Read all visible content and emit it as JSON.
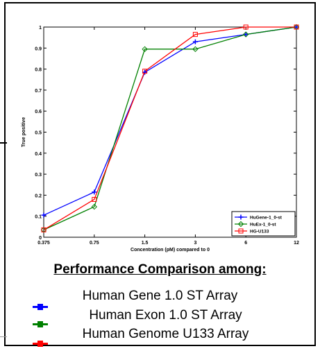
{
  "chart_data": {
    "type": "line",
    "x_categories": [
      "0.375",
      "0.75",
      "1.5",
      "3",
      "6",
      "12"
    ],
    "xlabel": "Concentration (pM) compared to 0",
    "ylabel": "True positive",
    "ylim": [
      0,
      1
    ],
    "yticks": [
      "0",
      "0.1",
      "0.2",
      "0.3",
      "0.4",
      "0.5",
      "0.6",
      "0.7",
      "0.8",
      "0.9",
      "1"
    ],
    "legend_position": "bottom-right",
    "series": [
      {
        "name": "HuGene-1_0-st",
        "color": "#0000ff",
        "marker": "plus",
        "values": [
          0.105,
          0.215,
          0.785,
          0.93,
          0.965,
          1.0
        ]
      },
      {
        "name": "HuEx-1_0-st",
        "color": "#008000",
        "marker": "diamond",
        "values": [
          0.035,
          0.145,
          0.895,
          0.895,
          0.965,
          1.0
        ]
      },
      {
        "name": "HG-U133",
        "color": "#ff0000",
        "marker": "square",
        "values": [
          0.035,
          0.18,
          0.79,
          0.965,
          1.0,
          1.0
        ]
      }
    ]
  },
  "caption": {
    "title": "Performance Comparison among:",
    "items": [
      {
        "label": "Human Gene 1.0 ST Array",
        "color": "#0000ff"
      },
      {
        "label": "Human Exon 1.0 ST Array",
        "color": "#008000"
      },
      {
        "label": "Human Genome U133 Array",
        "color": "#ff0000"
      }
    ]
  }
}
